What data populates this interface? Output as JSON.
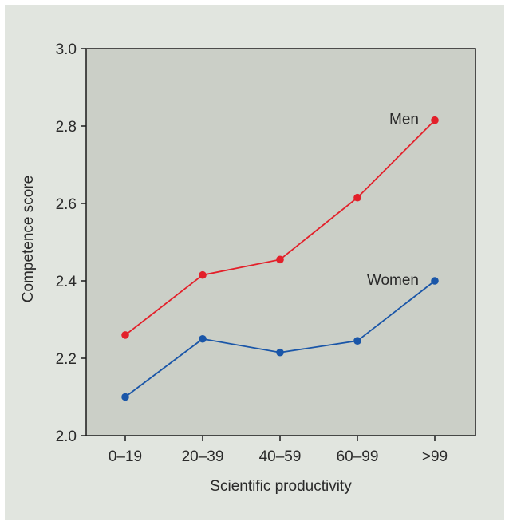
{
  "chart_data": {
    "type": "line",
    "title": "",
    "xlabel": "Scientific productivity",
    "ylabel": "Competence score",
    "categories": [
      "0–19",
      "20–39",
      "40–59",
      "60–99",
      ">99"
    ],
    "ylim": [
      2.0,
      3.0
    ],
    "yticks": [
      "2.0",
      "2.2",
      "2.4",
      "2.6",
      "2.8",
      "3.0"
    ],
    "grid": false,
    "series": [
      {
        "name": "Men",
        "color": "#e3202a",
        "values": [
          2.26,
          2.415,
          2.455,
          2.615,
          2.815
        ]
      },
      {
        "name": "Women",
        "color": "#1a56a8",
        "values": [
          2.1,
          2.25,
          2.215,
          2.245,
          2.4
        ]
      }
    ],
    "colors": {
      "plot_bg": "#cbcfc7",
      "figure_bg": "#e1e5df",
      "axis": "#1a1a1a"
    }
  }
}
